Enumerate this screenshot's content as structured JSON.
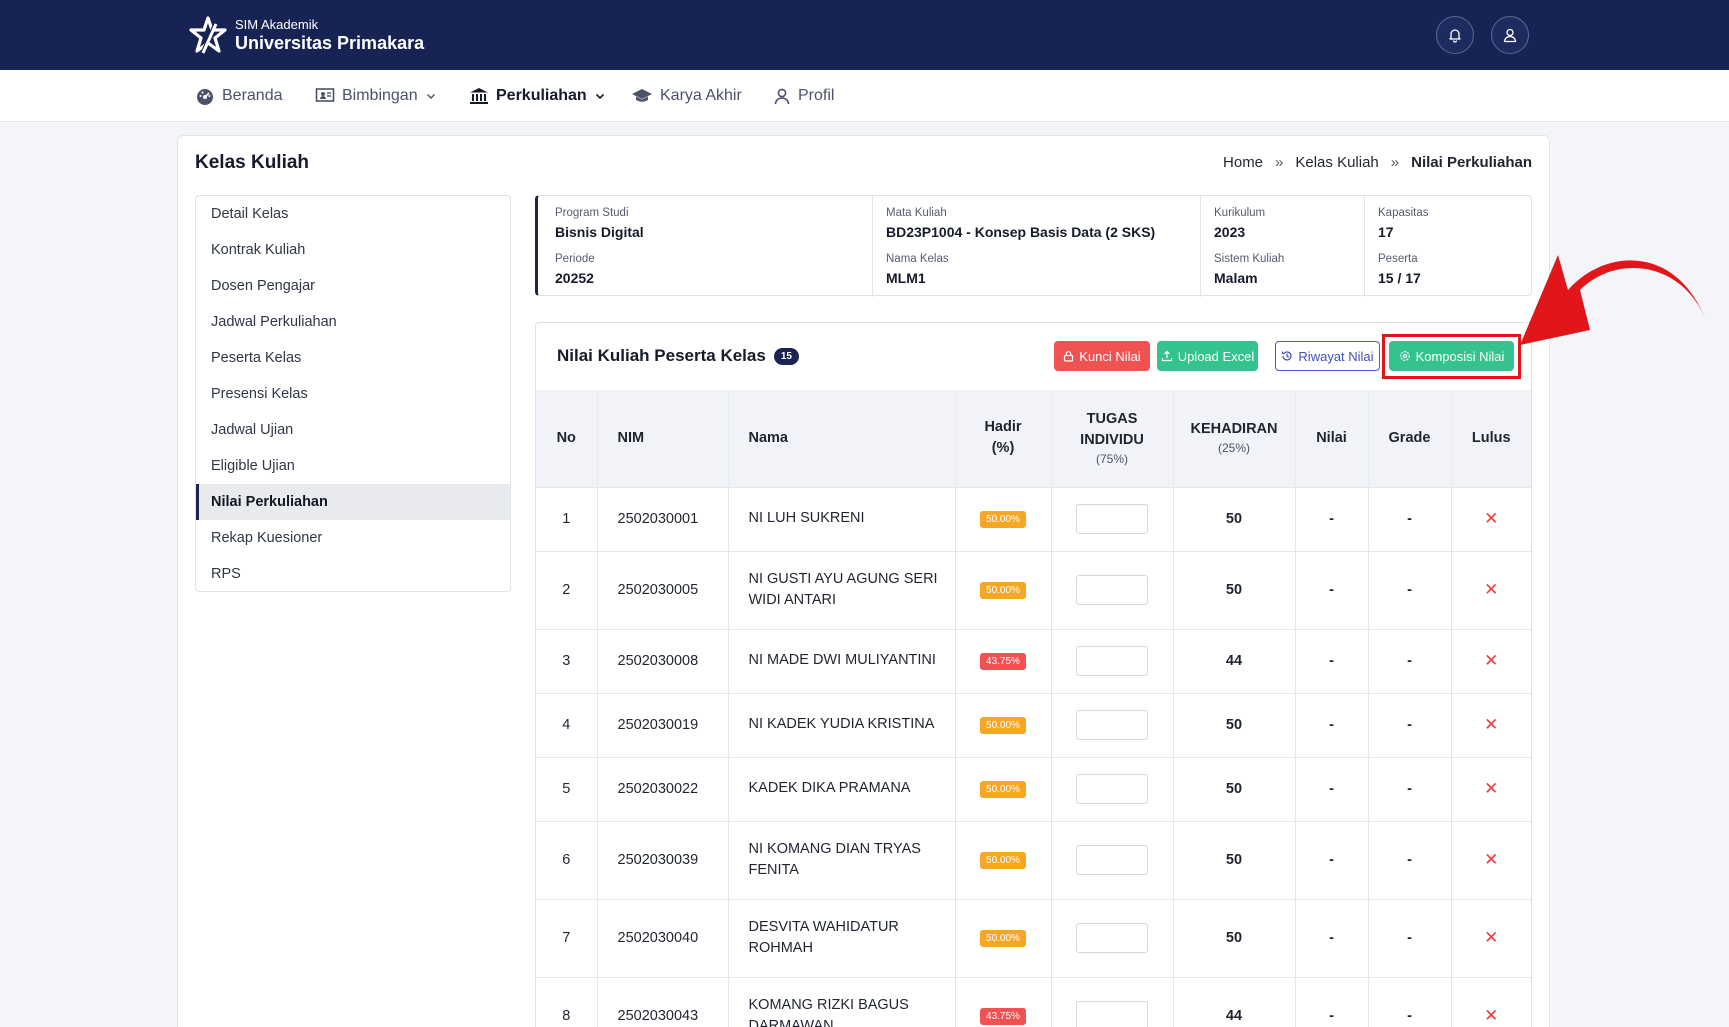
{
  "header": {
    "app_small": "SIM Akademik",
    "app_name": "Universitas Primakara"
  },
  "nav": [
    {
      "label": "Beranda",
      "icon": "dashboard-icon"
    },
    {
      "label": "Bimbingan",
      "icon": "classroom-icon"
    },
    {
      "label": "Perkuliahan",
      "icon": "university-icon",
      "active": true
    },
    {
      "label": "Karya Akhir",
      "icon": "graduation-cap-icon"
    },
    {
      "label": "Profil",
      "icon": "user-icon"
    }
  ],
  "page": {
    "title": "Kelas Kuliah",
    "breadcrumb": [
      "Home",
      "Kelas Kuliah",
      "Nilai Perkuliahan"
    ],
    "breadcrumb_sep": "»"
  },
  "sidebar": {
    "items": [
      "Detail Kelas",
      "Kontrak Kuliah",
      "Dosen Pengajar",
      "Jadwal Perkuliahan",
      "Peserta Kelas",
      "Presensi Kelas",
      "Jadwal Ujian",
      "Eligible Ujian",
      "Nilai Perkuliahan",
      "Rekap Kuesioner",
      "RPS"
    ],
    "active_index": 8
  },
  "info": {
    "program_studi": {
      "label": "Program Studi",
      "value": "Bisnis Digital"
    },
    "periode": {
      "label": "Periode",
      "value": "20252"
    },
    "mata_kuliah": {
      "label": "Mata Kuliah",
      "value": "BD23P1004 - Konsep Basis Data (2 SKS)"
    },
    "nama_kelas": {
      "label": "Nama Kelas",
      "value": "MLM1"
    },
    "kurikulum": {
      "label": "Kurikulum",
      "value": "2023"
    },
    "sistem_kuliah": {
      "label": "Sistem Kuliah",
      "value": "Malam"
    },
    "kapasitas": {
      "label": "Kapasitas",
      "value": "17"
    },
    "peserta": {
      "label": "Peserta",
      "value": "15 / 17"
    }
  },
  "grades": {
    "title": "Nilai Kuliah Peserta Kelas",
    "count": "15",
    "buttons": {
      "kunci": "Kunci Nilai",
      "upload": "Upload Excel",
      "riwayat": "Riwayat Nilai",
      "komposisi": "Komposisi Nilai"
    },
    "columns": {
      "no": "No",
      "nim": "NIM",
      "nama": "Nama",
      "hadir": "Hadir",
      "hadir_unit": "(%)",
      "tugas_1": "TUGAS",
      "tugas_2": "INDIVIDU",
      "tugas_weight": "(75%)",
      "kehadiran": "KEHADIRAN",
      "kehadiran_weight": "(25%)",
      "nilai": "Nilai",
      "grade": "Grade",
      "lulus": "Lulus"
    },
    "rows": [
      {
        "no": "1",
        "nim": "2502030001",
        "nama": "NI LUH SUKRENI",
        "hadir": "50.00%",
        "hadir_level": "warn",
        "kehadiran": "50",
        "nilai": "-",
        "grade": "-",
        "lulus": "✕"
      },
      {
        "no": "2",
        "nim": "2502030005",
        "nama": "NI GUSTI AYU AGUNG SERI WIDI ANTARI",
        "hadir": "50.00%",
        "hadir_level": "warn",
        "kehadiran": "50",
        "nilai": "-",
        "grade": "-",
        "lulus": "✕"
      },
      {
        "no": "3",
        "nim": "2502030008",
        "nama": "NI MADE DWI MULIYANTINI",
        "hadir": "43.75%",
        "hadir_level": "danger",
        "kehadiran": "44",
        "nilai": "-",
        "grade": "-",
        "lulus": "✕"
      },
      {
        "no": "4",
        "nim": "2502030019",
        "nama": "NI KADEK YUDIA KRISTINA",
        "hadir": "50.00%",
        "hadir_level": "warn",
        "kehadiran": "50",
        "nilai": "-",
        "grade": "-",
        "lulus": "✕"
      },
      {
        "no": "5",
        "nim": "2502030022",
        "nama": "KADEK DIKA PRAMANA",
        "hadir": "50.00%",
        "hadir_level": "warn",
        "kehadiran": "50",
        "nilai": "-",
        "grade": "-",
        "lulus": "✕"
      },
      {
        "no": "6",
        "nim": "2502030039",
        "nama": "NI KOMANG DIAN TRYAS FENITA",
        "hadir": "50.00%",
        "hadir_level": "warn",
        "kehadiran": "50",
        "nilai": "-",
        "grade": "-",
        "lulus": "✕"
      },
      {
        "no": "7",
        "nim": "2502030040",
        "nama": "DESVITA WAHIDATUR ROHMAH",
        "hadir": "50.00%",
        "hadir_level": "warn",
        "kehadiran": "50",
        "nilai": "-",
        "grade": "-",
        "lulus": "✕"
      },
      {
        "no": "8",
        "nim": "2502030043",
        "nama": "KOMANG RIZKI BAGUS DARMAWAN",
        "hadir": "43.75%",
        "hadir_level": "danger",
        "kehadiran": "44",
        "nilai": "-",
        "grade": "-",
        "lulus": "✕"
      }
    ]
  },
  "colors": {
    "header_bg": "#172453",
    "accent": "#1b2450",
    "warn": "#f5a623",
    "danger": "#f05252",
    "success": "#34c38f",
    "highlight": "#e0161b"
  }
}
